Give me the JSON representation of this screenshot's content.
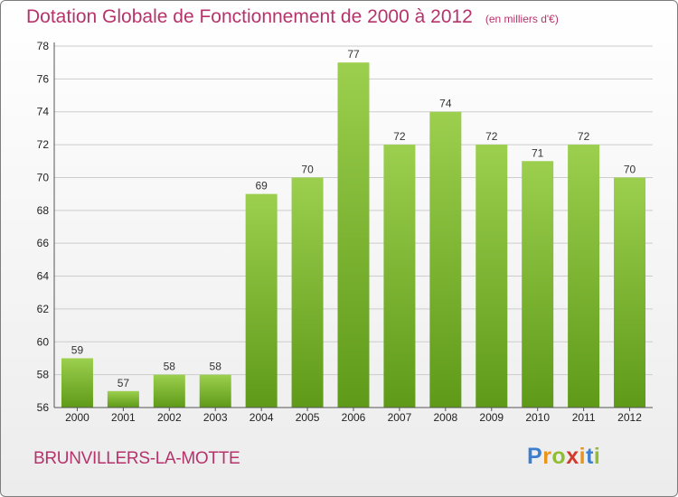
{
  "header": {
    "title": "Dotation Globale de Fonctionnement de 2000 à 2012",
    "unit": "(en milliers d'€)"
  },
  "footer": {
    "commune": "BRUNVILLERS-LA-MOTTE",
    "logo": "Proxiti"
  },
  "colors": {
    "title": "#b6336b",
    "bar_top": "#9ccf4e",
    "bar_bottom": "#5e9a18",
    "grid": "#cccccc"
  },
  "chart_data": {
    "type": "bar",
    "title": "Dotation Globale de Fonctionnement de 2000 à 2012",
    "subtitle": "(en milliers d'€)",
    "categories": [
      "2000",
      "2001",
      "2002",
      "2003",
      "2004",
      "2005",
      "2006",
      "2007",
      "2008",
      "2009",
      "2010",
      "2011",
      "2012"
    ],
    "values": [
      59,
      57,
      58,
      58,
      69,
      70,
      77,
      72,
      74,
      72,
      71,
      72,
      70
    ],
    "ylim": [
      56,
      78
    ],
    "yticks": [
      56,
      58,
      60,
      62,
      64,
      66,
      68,
      70,
      72,
      74,
      76,
      78
    ],
    "grid": true,
    "xlabel": "",
    "ylabel": ""
  }
}
